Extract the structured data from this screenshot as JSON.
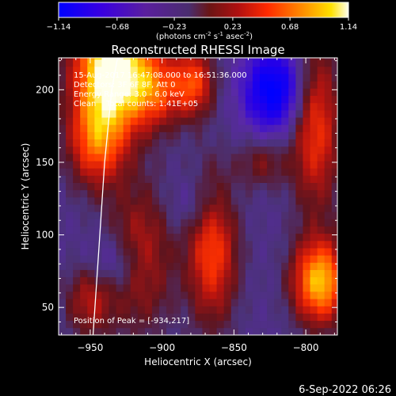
{
  "chart_data": {
    "type": "heatmap",
    "title": "Reconstructed RHESSI Image",
    "xlabel": "Heliocentric X (arcsec)",
    "ylabel": "Heliocentric Y (arcsec)",
    "xlim": [
      -972,
      -778
    ],
    "ylim": [
      31,
      222
    ],
    "xticks": [
      -950,
      -900,
      -850,
      -800
    ],
    "yticks": [
      50,
      100,
      150,
      200
    ],
    "colorbar": {
      "range": [
        -1.14,
        1.14
      ],
      "ticks": [
        -1.14,
        -0.68,
        -0.23,
        0.23,
        0.68,
        1.14
      ],
      "tick_labels": [
        "-1.14",
        "-0.68",
        "-0.23",
        "0.23",
        "0.68",
        "1.14"
      ],
      "label_main": "(photons cm",
      "label_sup1": "-2",
      "label_mid": " s",
      "label_sup2": "-1",
      "label_end": " asec",
      "label_sup3": "-2",
      "label_close": ")"
    },
    "annotations": [
      "15-Aug-2017 16:47:08.000 to 16:51:36.000",
      "Detectors: 3F 6F 8F, Att 0",
      "Energy Range: 3.0 - 6.0 keV",
      "Clean    Total counts: 1.41E+05"
    ],
    "peak_text": "Position of Peak = [-934,217]",
    "limb_arc": [
      [
        -948,
        31
      ],
      [
        -944,
        90
      ],
      [
        -940,
        150
      ],
      [
        -935,
        200
      ],
      [
        -931,
        222
      ]
    ],
    "sources": [
      {
        "x": -935,
        "y": 215,
        "sx": 18,
        "sy": 28,
        "amp": 1.55
      },
      {
        "x": -945,
        "y": 165,
        "sx": 14,
        "sy": 22,
        "amp": 0.85
      },
      {
        "x": -905,
        "y": 200,
        "sx": 14,
        "sy": 18,
        "amp": 0.7
      },
      {
        "x": -878,
        "y": 205,
        "sx": 10,
        "sy": 16,
        "amp": 0.75
      },
      {
        "x": -793,
        "y": 175,
        "sx": 12,
        "sy": 40,
        "amp": 0.75
      },
      {
        "x": -830,
        "y": 150,
        "sx": 12,
        "sy": 12,
        "amp": 0.35
      },
      {
        "x": -790,
        "y": 68,
        "sx": 13,
        "sy": 20,
        "amp": 1.2
      },
      {
        "x": -865,
        "y": 90,
        "sx": 12,
        "sy": 35,
        "amp": 0.8
      },
      {
        "x": -915,
        "y": 85,
        "sx": 16,
        "sy": 35,
        "amp": 0.55
      },
      {
        "x": -950,
        "y": 55,
        "sx": 12,
        "sy": 18,
        "amp": 0.5
      },
      {
        "x": -822,
        "y": 200,
        "sx": 15,
        "sy": 20,
        "amp": -0.9
      },
      {
        "x": -932,
        "y": 80,
        "sx": 14,
        "sy": 14,
        "amp": -0.35
      },
      {
        "x": -875,
        "y": 120,
        "sx": 14,
        "sy": 14,
        "amp": -0.25
      }
    ],
    "baseline": -0.28
  },
  "footer": {
    "date": "6-Sep-2022 06:26"
  }
}
